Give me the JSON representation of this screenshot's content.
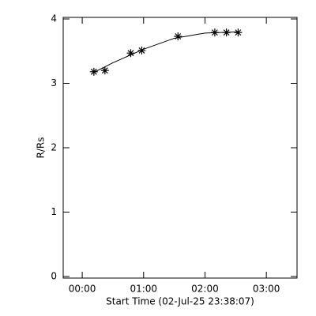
{
  "chart_data": {
    "type": "scatter",
    "xlabel": "Start Time (02-Jul-25 23:38:07)",
    "ylabel": "R/Rs",
    "x": [
      0.19,
      0.37,
      0.79,
      0.97,
      1.56,
      2.16,
      2.35,
      2.54
    ],
    "values": [
      3.18,
      3.2,
      3.47,
      3.51,
      3.73,
      3.79,
      3.79,
      3.79
    ],
    "fit": {
      "x": [
        0.19,
        0.5,
        1.0,
        1.5,
        2.0,
        2.54
      ],
      "values": [
        3.17,
        3.32,
        3.53,
        3.7,
        3.78,
        3.8
      ]
    },
    "color": "#000000",
    "xlim": [
      -0.31,
      3.5
    ],
    "ylim": [
      0,
      4
    ],
    "xticks": [
      {
        "value": 0,
        "label": "00:00"
      },
      {
        "value": 1,
        "label": "01:00"
      },
      {
        "value": 2,
        "label": "02:00"
      },
      {
        "value": 3,
        "label": "03:00"
      }
    ],
    "yticks": [
      0,
      1,
      2,
      3,
      4
    ]
  }
}
